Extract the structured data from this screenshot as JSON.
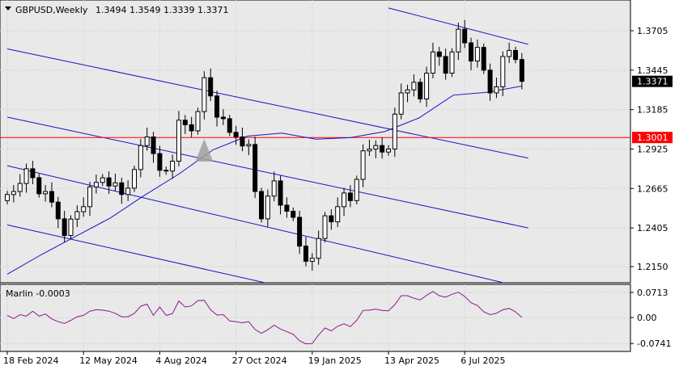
{
  "header": {
    "symbol_timeframe": "GBPUSD,Weekly",
    "ohlc": "1.3494 1.3549 1.3339 1.3371"
  },
  "colors": {
    "background": "#ffffff",
    "plot_background": "#e9e9e9",
    "candle_body_up": "#ffffff",
    "candle_body_down": "#000000",
    "channel_lines": "#1414c8",
    "moving_average": "#1414c8",
    "horizontal_level": "#ff0000",
    "oscillator": "#8b1a8b",
    "grid": "#c8c8c8",
    "price_tag_bg": "#000000",
    "level_tag_bg": "#ff0000"
  },
  "chart_data": [
    {
      "type": "candlestick",
      "title": "GBPUSD,Weekly",
      "price_ticks": [
        1.3705,
        1.3445,
        1.3185,
        1.2925,
        1.2665,
        1.2405,
        1.215
      ],
      "price_tick_labels": [
        "1.3705",
        "1.3445",
        "1.3185",
        "1.2925",
        "1.2665",
        "1.2405",
        "1.2150"
      ],
      "ylim": [
        1.2,
        1.385
      ],
      "date_labels": [
        "18 Feb 2024",
        "12 May 2024",
        "4 Aug 2024",
        "27 Oct 2024",
        "19 Jan 2025",
        "13 Apr 2025",
        "6 Jul 2025"
      ],
      "date_label_bar_index": [
        0,
        12,
        24,
        36,
        48,
        60,
        72
      ],
      "current_price": {
        "value": 1.3371,
        "label": "1.3371"
      },
      "horizontal_level": {
        "value": 1.3001,
        "label": "1.3001"
      },
      "closes": [
        1.2625,
        1.2645,
        1.2698,
        1.2795,
        1.2736,
        1.263,
        1.2645,
        1.2575,
        1.2465,
        1.2355,
        1.2463,
        1.2512,
        1.2545,
        1.2675,
        1.2705,
        1.2735,
        1.2681,
        1.2702,
        1.2625,
        1.2667,
        1.279,
        1.2948,
        1.3005,
        1.2895,
        1.2785,
        1.278,
        1.2845,
        1.3115,
        1.3085,
        1.3045,
        1.3172,
        1.3395,
        1.3275,
        1.3135,
        1.3125,
        1.3035,
        1.3005,
        1.2945,
        1.2955,
        1.2645,
        1.2465,
        1.2615,
        1.2715,
        1.2555,
        1.2515,
        1.2475,
        1.2285,
        1.2185,
        1.2205,
        1.2335,
        1.2485,
        1.2445,
        1.2545,
        1.2635,
        1.2585,
        1.2725,
        1.2913,
        1.2925,
        1.2948,
        1.2905,
        1.2925,
        1.3155,
        1.3295,
        1.3315,
        1.3365,
        1.3255,
        1.3425,
        1.3565,
        1.3535,
        1.3425,
        1.3565,
        1.3715,
        1.3625,
        1.3505,
        1.3595,
        1.3445,
        1.3295,
        1.3335,
        1.3535,
        1.3575,
        1.3515,
        1.3371
      ],
      "ma_anchor_values": [
        1.21,
        1.223,
        1.235,
        1.247,
        1.262,
        1.276,
        1.292,
        1.301,
        1.303,
        1.299,
        1.3,
        1.304,
        1.313,
        1.328,
        1.33,
        1.334
      ],
      "channel_lines": [
        {
          "x1_bar": 0,
          "y1": 1.3585,
          "x2_bar": 82,
          "y2": 1.2865
        },
        {
          "x1_bar": 0,
          "y1": 1.3135,
          "x2_bar": 82,
          "y2": 1.2405
        },
        {
          "x1_bar": 0,
          "y1": 1.2815,
          "x2_bar": 82,
          "y2": 1.2005
        },
        {
          "x1_bar": 0,
          "y1": 1.2425,
          "x2_bar": 50,
          "y2": 1.1955
        },
        {
          "x1_bar": 60,
          "y1": 1.3855,
          "x2_bar": 82,
          "y2": 1.3615
        }
      ],
      "marker": {
        "type": "triangle",
        "bar": 31
      }
    },
    {
      "type": "line",
      "title": "Marlin -0.0003",
      "name": "Marlin",
      "value_label": "-0.0003",
      "ticks": [
        0.0713,
        0.0,
        -0.0741
      ],
      "tick_labels": [
        "0.0713",
        "0.00",
        "-0.0741"
      ],
      "ylim": [
        -0.0885,
        0.0835
      ],
      "values": [
        0.006,
        -0.003,
        0.008,
        0.004,
        0.018,
        0.004,
        0.01,
        -0.004,
        -0.012,
        -0.017,
        -0.008,
        0.002,
        0.006,
        0.018,
        0.022,
        0.021,
        0.018,
        0.012,
        0.002,
        0.002,
        0.012,
        0.032,
        0.038,
        0.006,
        0.03,
        0.006,
        0.011,
        0.047,
        0.03,
        0.033,
        0.048,
        0.049,
        0.022,
        0.007,
        0.008,
        -0.01,
        -0.012,
        -0.015,
        -0.012,
        -0.034,
        -0.045,
        -0.035,
        -0.022,
        -0.033,
        -0.04,
        -0.048,
        -0.066,
        -0.075,
        -0.074,
        -0.05,
        -0.03,
        -0.038,
        -0.025,
        -0.018,
        -0.026,
        -0.008,
        0.02,
        0.021,
        0.024,
        0.02,
        0.019,
        0.036,
        0.062,
        0.062,
        0.055,
        0.05,
        0.063,
        0.074,
        0.062,
        0.058,
        0.066,
        0.072,
        0.06,
        0.042,
        0.034,
        0.016,
        0.008,
        0.012,
        0.022,
        0.026,
        0.016,
        0.0
      ]
    }
  ]
}
